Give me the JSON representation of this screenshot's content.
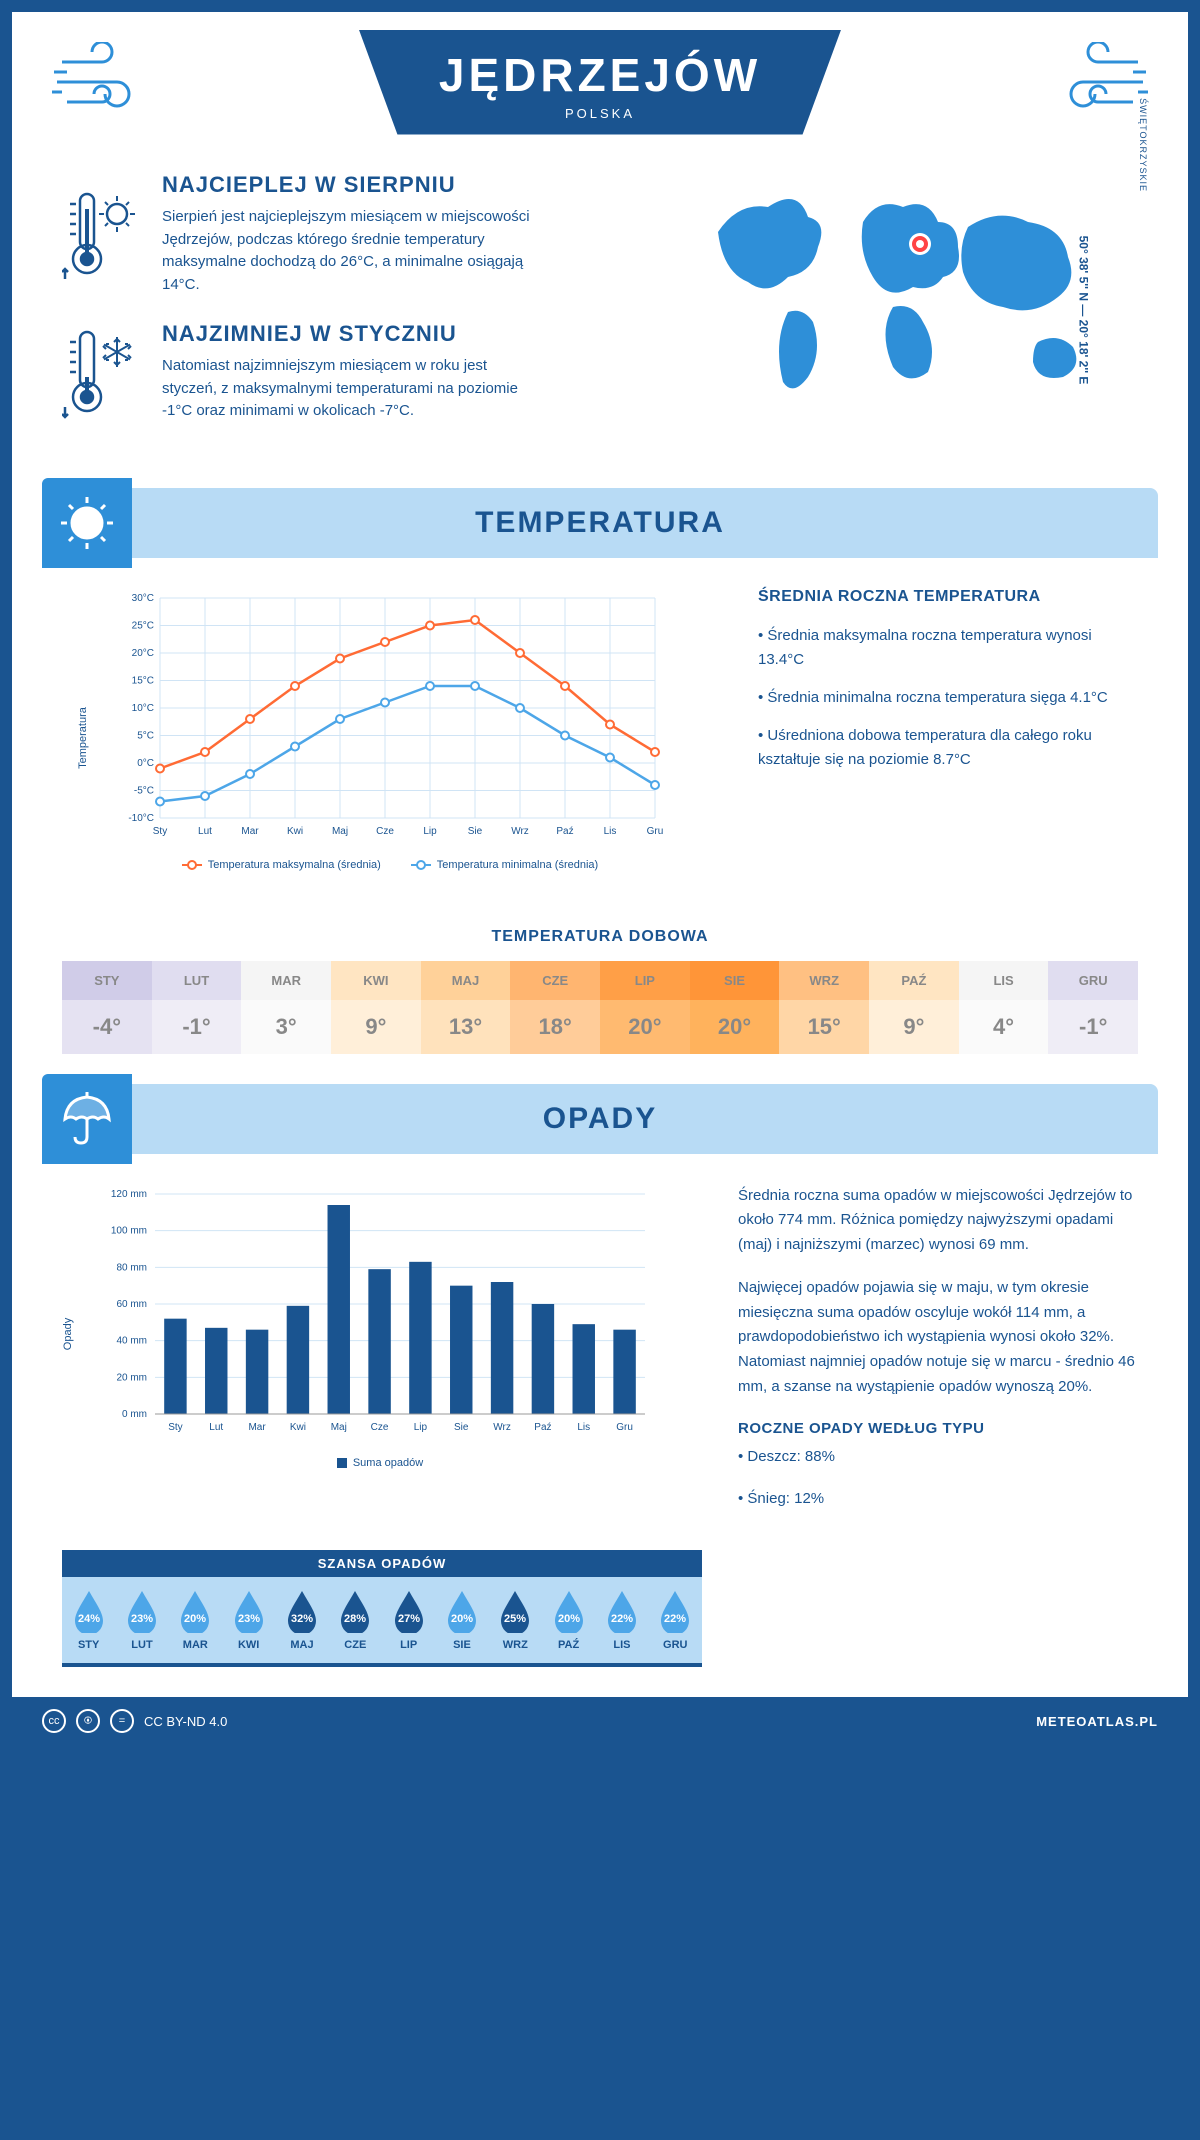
{
  "header": {
    "title": "JĘDRZEJÓW",
    "country": "POLSKA"
  },
  "coords": "50° 38' 5'' N — 20° 18' 2'' E",
  "region": "ŚWIĘTOKRZYSKIE",
  "intro": {
    "warm": {
      "title": "NAJCIEPLEJ W SIERPNIU",
      "text": "Sierpień jest najcieplejszym miesiącem w miejscowości Jędrzejów, podczas którego średnie temperatury maksymalne dochodzą do 26°C, a minimalne osiągają 14°C."
    },
    "cold": {
      "title": "NAJZIMNIEJ W STYCZNIU",
      "text": "Natomiast najzimniejszym miesiącem w roku jest styczeń, z maksymalnymi temperaturami na poziomie -1°C oraz minimami w okolicach -7°C."
    }
  },
  "temp_section": {
    "title": "TEMPERATURA",
    "stats_title": "ŚREDNIA ROCZNA TEMPERATURA",
    "stats": [
      "• Średnia maksymalna roczna temperatura wynosi 13.4°C",
      "• Średnia minimalna roczna temperatura sięga 4.1°C",
      "• Uśredniona dobowa temperatura dla całego roku kształtuje się na poziomie 8.7°C"
    ],
    "chart": {
      "type": "line",
      "months": [
        "Sty",
        "Lut",
        "Mar",
        "Kwi",
        "Maj",
        "Cze",
        "Lip",
        "Sie",
        "Wrz",
        "Paź",
        "Lis",
        "Gru"
      ],
      "ylim": [
        -10,
        30
      ],
      "ytick_step": 5,
      "ylabel": "Temperatura",
      "max_series": {
        "label": "Temperatura maksymalna (średnia)",
        "color": "#ff6b35",
        "values": [
          -1,
          2,
          8,
          14,
          19,
          22,
          25,
          26,
          20,
          14,
          7,
          2
        ]
      },
      "min_series": {
        "label": "Temperatura minimalna (średnia)",
        "color": "#4da6e8",
        "values": [
          -7,
          -6,
          -2,
          3,
          8,
          11,
          14,
          14,
          10,
          5,
          1,
          -4
        ]
      },
      "grid_color": "#d0e4f5",
      "background_color": "#ffffff"
    },
    "daily_title": "TEMPERATURA DOBOWA",
    "daily": {
      "months": [
        "STY",
        "LUT",
        "MAR",
        "KWI",
        "MAJ",
        "CZE",
        "LIP",
        "SIE",
        "WRZ",
        "PAŹ",
        "LIS",
        "GRU"
      ],
      "values": [
        "-4°",
        "-1°",
        "3°",
        "9°",
        "13°",
        "18°",
        "20°",
        "20°",
        "15°",
        "9°",
        "4°",
        "-1°"
      ],
      "header_colors": [
        "#d0cce8",
        "#e0ddf0",
        "#f5f5f5",
        "#ffe5c2",
        "#ffd199",
        "#ffb570",
        "#ff9f47",
        "#ff9538",
        "#ffc082",
        "#ffe5c2",
        "#f5f5f5",
        "#e0ddf0"
      ],
      "value_colors": [
        "#e5e2f2",
        "#efedf6",
        "#fafafa",
        "#ffefd9",
        "#ffe2bc",
        "#ffcc99",
        "#ffba70",
        "#ffb25c",
        "#ffd6a6",
        "#ffefd9",
        "#fafafa",
        "#efedf6"
      ],
      "text_color": "#888888"
    }
  },
  "opady_section": {
    "title": "OPADY",
    "text1": "Średnia roczna suma opadów w miejscowości Jędrzejów to około 774 mm. Różnica pomiędzy najwyższymi opadami (maj) i najniższymi (marzec) wynosi 69 mm.",
    "text2": "Najwięcej opadów pojawia się w maju, w tym okresie miesięczna suma opadów oscyluje wokół 114 mm, a prawdopodobieństwo ich wystąpienia wynosi około 32%. Natomiast najmniej opadów notuje się w marcu - średnio 46 mm, a szanse na wystąpienie opadów wynoszą 20%.",
    "type_title": "ROCZNE OPADY WEDŁUG TYPU",
    "types": [
      "• Deszcz: 88%",
      "• Śnieg: 12%"
    ],
    "chart": {
      "type": "bar",
      "months": [
        "Sty",
        "Lut",
        "Mar",
        "Kwi",
        "Maj",
        "Cze",
        "Lip",
        "Sie",
        "Wrz",
        "Paź",
        "Lis",
        "Gru"
      ],
      "values": [
        52,
        47,
        46,
        59,
        114,
        79,
        83,
        70,
        72,
        60,
        49,
        46
      ],
      "ylim": [
        0,
        120
      ],
      "ytick_step": 20,
      "ylabel": "Opady",
      "bar_color": "#1a5490",
      "legend": "Suma opadów",
      "grid_color": "#d0e4f5"
    },
    "chance": {
      "title": "SZANSA OPADÓW",
      "months": [
        "STY",
        "LUT",
        "MAR",
        "KWI",
        "MAJ",
        "CZE",
        "LIP",
        "SIE",
        "WRZ",
        "PAŹ",
        "LIS",
        "GRU"
      ],
      "values": [
        "24%",
        "23%",
        "20%",
        "23%",
        "32%",
        "28%",
        "27%",
        "20%",
        "25%",
        "20%",
        "22%",
        "22%"
      ],
      "colors": [
        "#4da6e8",
        "#4da6e8",
        "#4da6e8",
        "#4da6e8",
        "#1a5490",
        "#1a5490",
        "#1a5490",
        "#4da6e8",
        "#1a5490",
        "#4da6e8",
        "#4da6e8",
        "#4da6e8"
      ]
    }
  },
  "footer": {
    "license": "CC BY-ND 4.0",
    "site": "METEOATLAS.PL"
  }
}
